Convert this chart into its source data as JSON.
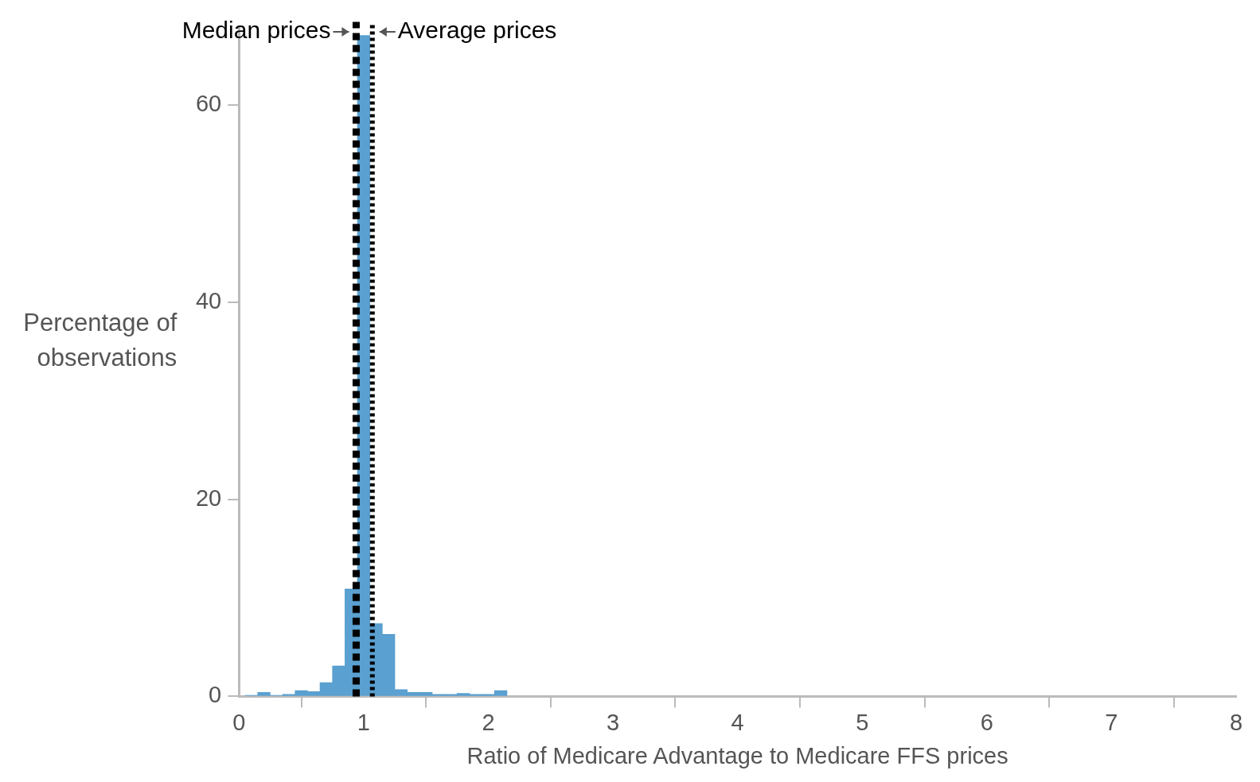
{
  "chart_data": {
    "type": "histogram",
    "xlabel": "Ratio of Medicare Advantage to Medicare FFS prices",
    "ylabel": "Percentage of observations",
    "bins": [
      0.05,
      0.15,
      0.25,
      0.35,
      0.45,
      0.55,
      0.65,
      0.75,
      0.85,
      0.95,
      1.05,
      1.15,
      1.25,
      1.35,
      1.45,
      1.55,
      1.65,
      1.75,
      1.85,
      1.95,
      2.05,
      2.15
    ],
    "values": [
      0.1,
      0.4,
      0.1,
      0.2,
      0.6,
      0.5,
      1.4,
      3.1,
      10.9,
      67.1,
      7.4,
      6.3,
      0.7,
      0.4,
      0.4,
      0.2,
      0.2,
      0.3,
      0.2,
      0.2,
      0.6
    ],
    "color": "#5aa0d0",
    "xlim": [
      0,
      8
    ],
    "xticks": [
      0,
      1,
      2,
      3,
      4,
      5,
      6,
      7,
      8
    ],
    "ylim": [
      0,
      68
    ],
    "yticks": [
      0,
      20,
      40,
      60
    ],
    "grid": false,
    "ref_lines": [
      {
        "axis": "x",
        "value": 0.94,
        "label": "Median prices",
        "line_style": "dashed",
        "color": "#000000"
      },
      {
        "axis": "x",
        "value": 1.07,
        "label": "Average prices",
        "line_style": "dotted",
        "color": "#000000"
      }
    ]
  }
}
